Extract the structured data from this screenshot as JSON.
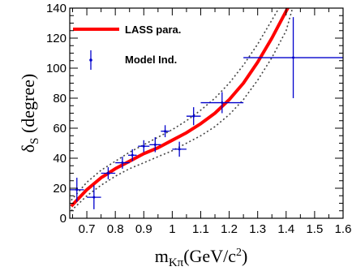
{
  "chart_data": {
    "type": "line",
    "xlabel": {
      "main": "m",
      "sub": "Kπ",
      "unit_pre": "(GeV/c",
      "unit_sup": "2",
      "unit_post": ")"
    },
    "ylabel": {
      "main": "δ",
      "sub": "S",
      "unit": " (degree)"
    },
    "xlim": [
      0.64,
      1.6
    ],
    "ylim": [
      0,
      140
    ],
    "x_ticks": [
      0.7,
      0.8,
      0.9,
      1.0,
      1.1,
      1.2,
      1.3,
      1.4,
      1.5,
      1.6
    ],
    "x_tick_labels": [
      "0.7",
      "0.8",
      "0.9",
      "1",
      "1.1",
      "1.2",
      "1.3",
      "1.4",
      "1.5",
      "1.6"
    ],
    "y_ticks": [
      0,
      20,
      40,
      60,
      80,
      100,
      120,
      140
    ],
    "y_tick_labels": [
      "0",
      "20",
      "40",
      "60",
      "80",
      "100",
      "120",
      "140"
    ],
    "legend": {
      "position": "top-left",
      "entries": [
        {
          "label": "LASS para.",
          "style": "line",
          "color": "#ff0000"
        },
        {
          "label": "Model Ind.",
          "style": "marker",
          "color": "#0000cc"
        }
      ]
    },
    "series": [
      {
        "name": "LASS para.",
        "kind": "curve",
        "color": "#ff0000",
        "x": [
          0.645,
          0.7,
          0.75,
          0.8,
          0.85,
          0.9,
          0.95,
          1.0,
          1.05,
          1.1,
          1.15,
          1.2,
          1.25,
          1.3,
          1.35,
          1.4,
          1.42
        ],
        "y": [
          8,
          19,
          27,
          33,
          38,
          43,
          47,
          52,
          57,
          63,
          70,
          79,
          90,
          104,
          120,
          138,
          145
        ]
      },
      {
        "name": "band-upper",
        "kind": "band",
        "color": "#444444",
        "x": [
          0.645,
          0.7,
          0.75,
          0.8,
          0.85,
          0.9,
          0.95,
          1.0,
          1.05,
          1.1,
          1.15,
          1.2,
          1.25,
          1.3,
          1.35,
          1.39
        ],
        "y": [
          12,
          24,
          32,
          38,
          44,
          49,
          54,
          59,
          65,
          72,
          80,
          90,
          102,
          116,
          132,
          145
        ]
      },
      {
        "name": "band-lower",
        "kind": "band",
        "color": "#444444",
        "x": [
          0.645,
          0.7,
          0.75,
          0.8,
          0.85,
          0.9,
          0.95,
          1.0,
          1.05,
          1.1,
          1.15,
          1.2,
          1.25,
          1.3,
          1.35,
          1.4,
          1.43
        ],
        "y": [
          5,
          15,
          22,
          28,
          33,
          37,
          41,
          45,
          50,
          55,
          61,
          69,
          79,
          92,
          107,
          125,
          145
        ]
      },
      {
        "name": "Model Ind.",
        "kind": "errorbar",
        "color": "#0000cc",
        "points": [
          {
            "x": 0.665,
            "y": 19,
            "xerr": 0.025,
            "yerr": 8
          },
          {
            "x": 0.725,
            "y": 14,
            "xerr": 0.025,
            "yerr": 8
          },
          {
            "x": 0.775,
            "y": 30,
            "xerr": 0.025,
            "yerr": 4
          },
          {
            "x": 0.825,
            "y": 37,
            "xerr": 0.025,
            "yerr": 4
          },
          {
            "x": 0.86,
            "y": 42,
            "xerr": 0.015,
            "yerr": 4
          },
          {
            "x": 0.9,
            "y": 48,
            "xerr": 0.02,
            "yerr": 4
          },
          {
            "x": 0.94,
            "y": 49,
            "xerr": 0.02,
            "yerr": 5
          },
          {
            "x": 0.975,
            "y": 58,
            "xerr": 0.015,
            "yerr": 4
          },
          {
            "x": 1.025,
            "y": 46,
            "xerr": 0.025,
            "yerr": 5
          },
          {
            "x": 1.075,
            "y": 68,
            "xerr": 0.025,
            "yerr": 6
          },
          {
            "x": 1.175,
            "y": 77,
            "xerr": 0.075,
            "yerr": 7
          },
          {
            "x": 1.425,
            "y": 107,
            "xerr": 0.175,
            "yerr": 27
          }
        ]
      }
    ]
  }
}
